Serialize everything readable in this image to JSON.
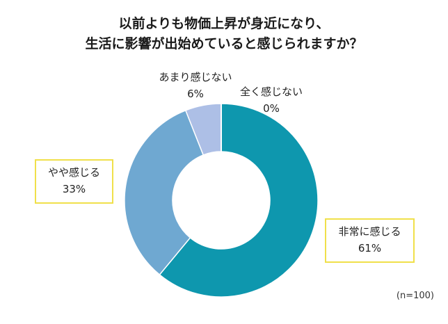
{
  "chart_data": {
    "type": "pie",
    "title": "以前よりも物価上昇が身近になり、",
    "subtitle": "生活に影響が出始めていると感じられますか？",
    "categories": [
      "非常に感じる",
      "やや感じる",
      "あまり感じない",
      "全く感じない"
    ],
    "values": [
      61,
      33,
      6,
      0
    ],
    "value_labels": [
      "61%",
      "33%",
      "6%",
      "0%"
    ],
    "colors": [
      "#0e97ae",
      "#6fa8d1",
      "#adbfe6",
      "#d6d6d6"
    ],
    "donut": true,
    "note": "(n=100)"
  }
}
